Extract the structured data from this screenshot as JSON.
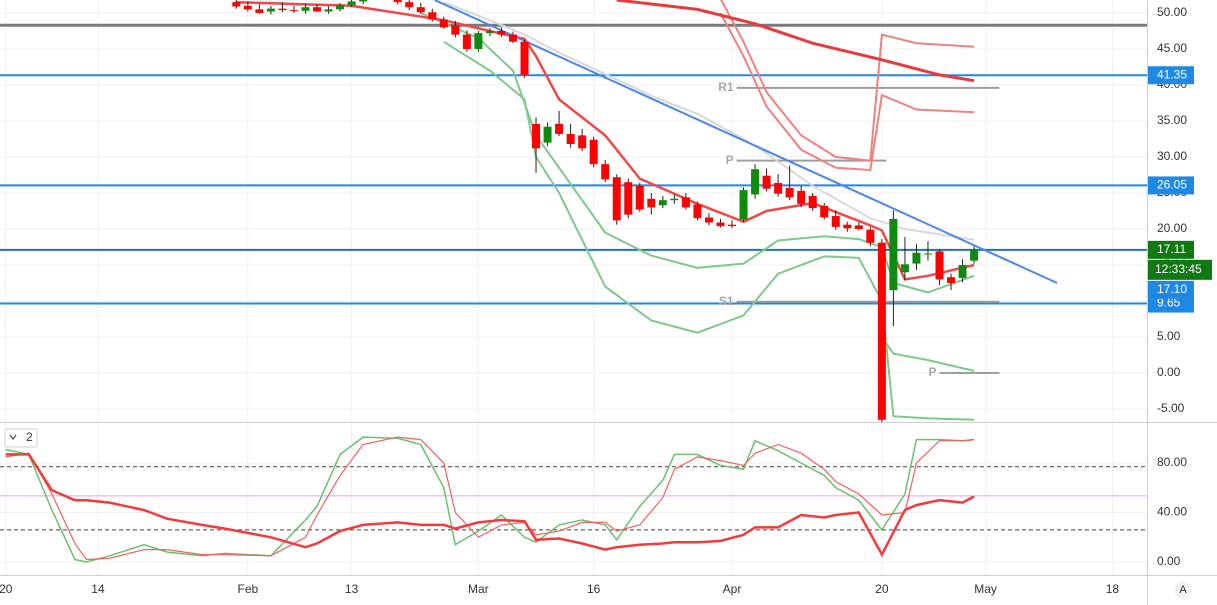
{
  "chart_data": [
    {
      "type": "candlestick",
      "x": [
        20,
        21,
        22,
        23,
        24,
        25,
        26,
        27,
        28,
        29,
        30,
        31,
        32,
        33,
        34,
        35,
        36,
        37,
        38,
        39,
        40,
        41,
        42,
        43,
        44,
        45,
        46,
        47,
        48,
        49,
        50,
        51,
        52,
        53,
        54,
        55,
        56,
        57,
        58,
        59,
        60,
        61,
        62,
        63,
        64,
        65,
        66,
        67,
        68,
        69,
        70,
        71,
        72,
        73,
        74,
        75,
        76,
        77,
        78,
        79,
        80,
        81,
        82,
        83,
        84
      ],
      "open": [
        51.5,
        51.0,
        50.5,
        50.2,
        50.6,
        50.4,
        50.3,
        50.8,
        50.2,
        50.5,
        51.1,
        51.6,
        52.2,
        52.6,
        52.3,
        51.5,
        50.8,
        50.1,
        49.1,
        48.3,
        47.0,
        45.0,
        47.2,
        47.5,
        47.0,
        46.0,
        34.6,
        32.0,
        34.6,
        33.2,
        33.0,
        32.4,
        29.0,
        27.2,
        26.5,
        26.0,
        24.2,
        23.3,
        24.0,
        24.4,
        23.4,
        21.6,
        20.9,
        20.6,
        21.3,
        24.8,
        27.4,
        26.4,
        25.7,
        25.3,
        24.6,
        23.2,
        21.8,
        20.6,
        20.5,
        19.9,
        18.1,
        11.5,
        14.0,
        15.2,
        16.5,
        16.9,
        13.3,
        13.2,
        15.6
      ],
      "high": [
        52.2,
        51.6,
        51.2,
        51.0,
        51.5,
        51.0,
        51.3,
        51.2,
        50.9,
        51.4,
        52.0,
        52.5,
        53.0,
        53.4,
        53.0,
        52.0,
        51.4,
        50.6,
        49.5,
        48.9,
        47.6,
        47.5,
        47.9,
        48.0,
        47.4,
        46.3,
        35.5,
        34.8,
        36.4,
        34.6,
        33.9,
        32.8,
        29.6,
        27.6,
        27.0,
        26.4,
        25.0,
        24.6,
        24.8,
        25.0,
        23.8,
        22.2,
        21.4,
        21.2,
        25.8,
        29.0,
        28.4,
        27.6,
        28.8,
        26.0,
        25.0,
        23.6,
        22.6,
        21.0,
        20.9,
        20.3,
        18.6,
        22.6,
        18.9,
        17.9,
        18.3,
        17.2,
        13.8,
        15.8,
        17.6
      ],
      "low": [
        50.6,
        50.2,
        49.9,
        49.8,
        50.1,
        50.0,
        49.9,
        50.1,
        49.9,
        50.2,
        50.8,
        51.2,
        51.8,
        52.0,
        51.2,
        50.4,
        49.9,
        48.8,
        47.8,
        46.6,
        44.6,
        44.6,
        46.8,
        46.7,
        45.8,
        41.0,
        27.8,
        31.5,
        32.9,
        31.3,
        30.8,
        28.6,
        26.5,
        20.6,
        21.5,
        22.4,
        22.0,
        22.9,
        23.5,
        22.7,
        21.2,
        20.5,
        20.2,
        20.1,
        21.0,
        24.2,
        25.2,
        24.5,
        24.0,
        23.0,
        22.5,
        21.3,
        19.9,
        19.6,
        19.8,
        17.6,
        -7.0,
        6.5,
        12.9,
        14.3,
        15.6,
        12.2,
        11.5,
        12.6,
        15.2
      ],
      "close": [
        50.9,
        50.5,
        50.0,
        50.6,
        50.4,
        50.3,
        50.8,
        50.2,
        50.5,
        51.1,
        51.6,
        52.2,
        52.6,
        52.3,
        51.5,
        50.8,
        50.1,
        49.1,
        48.0,
        47.0,
        45.0,
        47.2,
        47.5,
        47.0,
        46.0,
        41.4,
        31.2,
        34.2,
        33.2,
        31.8,
        31.2,
        29.0,
        26.9,
        21.2,
        22.0,
        22.7,
        23.0,
        24.0,
        24.2,
        23.0,
        21.5,
        20.9,
        20.4,
        20.4,
        25.4,
        28.3,
        25.6,
        24.9,
        24.4,
        23.5,
        22.9,
        21.6,
        20.3,
        20.1,
        20.0,
        18.1,
        -6.5,
        21.4,
        15.1,
        16.7,
        16.6,
        13.0,
        12.5,
        15.0,
        17.1
      ],
      "up_color": "#0e8a0e",
      "down_color": "#ff0000",
      "xlim": [
        -0.5,
        99
      ],
      "xticks": [
        {
          "value": 0,
          "label": "20"
        },
        {
          "value": 8,
          "label": "14"
        },
        {
          "value": 21,
          "label": "Feb"
        },
        {
          "value": 30,
          "label": "13"
        },
        {
          "value": 41,
          "label": "Mar"
        },
        {
          "value": 51,
          "label": "16"
        },
        {
          "value": 63,
          "label": "Apr"
        },
        {
          "value": 76,
          "label": "20"
        },
        {
          "value": 85,
          "label": "May"
        },
        {
          "value": 96,
          "label": "18"
        }
      ],
      "ylim": [
        -6.8,
        51.8
      ],
      "yticks": [
        {
          "value": 50,
          "label": "50.00"
        },
        {
          "value": 45,
          "label": "45.00"
        },
        {
          "value": 40,
          "label": "40.00"
        },
        {
          "value": 35,
          "label": "35.00"
        },
        {
          "value": 30,
          "label": "30.00"
        },
        {
          "value": 25,
          "label": "25.00"
        },
        {
          "value": 20,
          "label": "20.00"
        },
        {
          "value": 15,
          "label": "15.00"
        },
        {
          "value": 10,
          "label": "10.00"
        },
        {
          "value": 5,
          "label": "5.00"
        },
        {
          "value": 0,
          "label": "0.00"
        },
        {
          "value": -5,
          "label": "-5.00"
        }
      ],
      "grid": true,
      "overlays": [
        {
          "color": "#d8d8d8",
          "width": 2,
          "x": [
            38,
            42,
            45,
            48,
            52,
            56,
            60,
            64,
            66,
            70,
            75,
            78,
            84
          ],
          "values": [
            51.5,
            49.0,
            47.0,
            44.5,
            41.5,
            38.5,
            36.0,
            32.5,
            30.5,
            26.0,
            21.5,
            20.0,
            18.5
          ]
        },
        {
          "color": "#7dc98a",
          "width": 2,
          "x": [
            36,
            41,
            44,
            46,
            48,
            52,
            56,
            60,
            64,
            67,
            71,
            74,
            76,
            77,
            80,
            84
          ],
          "values": [
            50,
            46.5,
            42,
            33,
            28.5,
            19.5,
            16.3,
            14.6,
            15.2,
            18.4,
            19,
            18.6,
            17.5,
            12.5,
            11.2,
            13.5
          ]
        },
        {
          "color": "#7dc98a",
          "width": 2,
          "x": [
            38,
            42,
            45,
            46,
            48,
            52,
            56,
            60,
            64,
            67,
            71,
            74,
            76,
            77,
            80,
            84
          ],
          "values": [
            46,
            42,
            38,
            30,
            25,
            12,
            7.3,
            5.6,
            8,
            13.8,
            16.2,
            16,
            10,
            -6,
            -6.3,
            -6.5
          ]
        },
        {
          "color": "#7dc98a",
          "width": 2,
          "x": [
            76,
            77,
            80,
            84
          ],
          "values": [
            5,
            2.7,
            1.8,
            0.3
          ]
        },
        {
          "color": "#f08080",
          "width": 2,
          "x": [
            62,
            64,
            66,
            69,
            72,
            75,
            76,
            79,
            84
          ],
          "values": [
            52,
            46,
            39,
            33,
            30,
            29.5,
            47,
            45.8,
            45.3
          ]
        },
        {
          "color": "#f08080",
          "width": 2,
          "x": [
            62,
            64,
            66,
            69,
            72,
            75,
            76,
            79,
            84
          ],
          "values": [
            50,
            44,
            37,
            31,
            28.5,
            28.2,
            38.6,
            36.6,
            36.2
          ]
        },
        {
          "color": "#e83a3a",
          "width": 3,
          "x": [
            53,
            60,
            65,
            70,
            76,
            81,
            84
          ],
          "values": [
            51.8,
            50.5,
            48.5,
            45.8,
            43.5,
            41.4,
            40.6
          ]
        },
        {
          "color": "#f04848",
          "width": 2.5,
          "x": [
            20,
            30,
            38,
            42,
            45,
            46,
            48,
            52,
            55,
            60,
            64,
            66,
            70,
            75,
            76,
            78,
            80,
            84
          ],
          "values": [
            51.5,
            51.0,
            49.0,
            47.5,
            46.4,
            44.0,
            38.0,
            33.0,
            27.0,
            23.5,
            21.0,
            22.5,
            23.6,
            20.5,
            19.8,
            13.0,
            13.5,
            15.0
          ]
        },
        {
          "color": "#4a86e8",
          "width": 2,
          "x": [
            37.2,
            91.2
          ],
          "values": [
            51.8,
            12.5
          ]
        }
      ],
      "levels": [
        {
          "value": 48.3,
          "color": "#7a7a7a",
          "width": 3
        },
        {
          "value": 41.35,
          "color": "#1e88e5",
          "width": 2,
          "tag_color": "#1e88e5"
        },
        {
          "value": 26.05,
          "color": "#1e88e5",
          "width": 2,
          "tag_color": "#1e88e5"
        },
        {
          "value": 17.11,
          "color": "#1b75a8",
          "width": 2,
          "tag_color": "#0f7a12"
        },
        {
          "value": 9.65,
          "color": "#1e88e5",
          "width": 2,
          "tag_color": "#1e88e5"
        }
      ],
      "pivots": [
        {
          "label": "R1",
          "value": 39.6,
          "x": [
            63.4,
            86.2
          ]
        },
        {
          "label": "P",
          "value": 29.5,
          "x": [
            63.4,
            76.4
          ]
        },
        {
          "label": "S1",
          "value": 9.9,
          "x": [
            63.4,
            86.2
          ]
        },
        {
          "label": "P",
          "value": 0,
          "x": [
            81,
            86.2
          ]
        }
      ],
      "countdown": "12:33:45",
      "last_price": {
        "value": 17.1,
        "label": "17.10"
      },
      "scale_button": "A"
    },
    {
      "type": "line",
      "indicator_label": "2",
      "x": [
        0,
        2,
        4,
        6,
        7,
        9,
        12,
        14,
        17,
        19,
        23,
        26,
        27,
        29,
        31,
        34,
        36,
        38,
        39,
        41,
        43,
        45,
        46,
        48,
        50,
        52,
        53,
        55,
        57,
        58,
        60,
        62,
        64,
        65,
        67,
        69,
        71,
        72,
        74,
        76,
        78,
        79,
        81,
        83,
        84
      ],
      "series": [
        {
          "color": "#6cbf6c",
          "width": 1.5,
          "values": [
            91,
            87,
            42,
            2,
            0,
            5,
            14,
            8,
            5,
            7,
            5,
            34,
            45,
            87,
            101,
            100,
            95,
            60,
            14,
            25,
            38,
            20,
            16,
            30,
            34,
            30,
            18,
            45,
            66,
            87,
            87,
            78,
            75,
            98,
            90,
            80,
            70,
            60,
            50,
            26,
            55,
            99,
            99,
            98,
            99
          ]
        },
        {
          "color": "#f06060",
          "width": 1.2,
          "values": [
            85,
            88,
            55,
            15,
            2,
            3,
            10,
            10,
            6,
            6,
            5,
            20,
            38,
            70,
            95,
            101,
            99,
            80,
            40,
            20,
            30,
            32,
            22,
            25,
            32,
            32,
            25,
            30,
            52,
            75,
            85,
            82,
            78,
            88,
            95,
            88,
            75,
            65,
            55,
            38,
            40,
            80,
            98,
            98,
            99
          ]
        },
        {
          "color": "#f03c3c",
          "width": 2.5,
          "values": [
            87,
            87,
            58,
            50,
            50,
            48,
            42,
            35,
            30,
            27,
            20,
            12,
            15,
            25,
            30,
            32,
            30,
            30,
            27,
            32,
            34,
            33,
            18,
            19,
            15,
            10,
            12,
            14,
            15,
            16,
            16,
            17,
            22,
            28,
            28,
            38,
            36,
            38,
            40,
            6,
            42,
            46,
            50,
            48,
            53
          ]
        }
      ],
      "xlim": [
        -0.5,
        99
      ],
      "ylim": [
        -10.5,
        112.4
      ],
      "yticks": [
        {
          "value": 80,
          "label": "80.00"
        },
        {
          "value": 40,
          "label": "40.00"
        },
        {
          "value": 0,
          "label": "0.00"
        }
      ],
      "grid": true,
      "levels": [
        {
          "value": 77,
          "color": "#444",
          "dash": true
        },
        {
          "value": 26,
          "color": "#444",
          "dash": true
        },
        {
          "value": 53.5,
          "color": "#e8a0e8"
        }
      ]
    }
  ]
}
